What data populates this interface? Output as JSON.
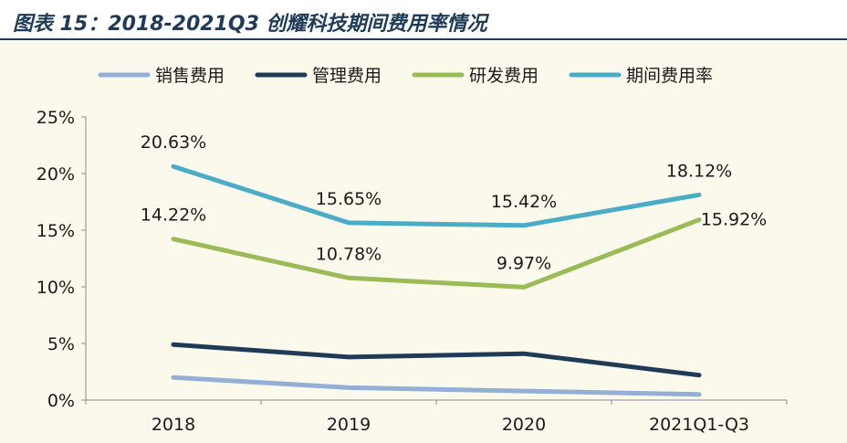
{
  "title": "图表 15：2018-2021Q3 创耀科技期间费用率情况",
  "chart_data": {
    "type": "line",
    "categories": [
      "2018",
      "2019",
      "2020",
      "2021Q1-Q3"
    ],
    "ylim": [
      0,
      25
    ],
    "yticks": [
      "0%",
      "5%",
      "10%",
      "15%",
      "20%",
      "25%"
    ],
    "legend_position": "top",
    "grid": false,
    "series": [
      {
        "name": "销售费用",
        "color": "#93afd6",
        "values": [
          2.0,
          1.1,
          0.8,
          0.5
        ],
        "labels": []
      },
      {
        "name": "管理费用",
        "color": "#1f3b57",
        "values": [
          4.9,
          3.8,
          4.1,
          2.2
        ],
        "labels": []
      },
      {
        "name": "研发费用",
        "color": "#9bbb59",
        "values": [
          14.22,
          10.78,
          9.97,
          15.92
        ],
        "labels": [
          "14.22%",
          "10.78%",
          "9.97%",
          "15.92%"
        ]
      },
      {
        "name": "期间费用率",
        "color": "#4bacc6",
        "values": [
          20.63,
          15.65,
          15.42,
          18.12
        ],
        "labels": [
          "20.63%",
          "15.65%",
          "15.42%",
          "18.12%"
        ]
      }
    ]
  }
}
